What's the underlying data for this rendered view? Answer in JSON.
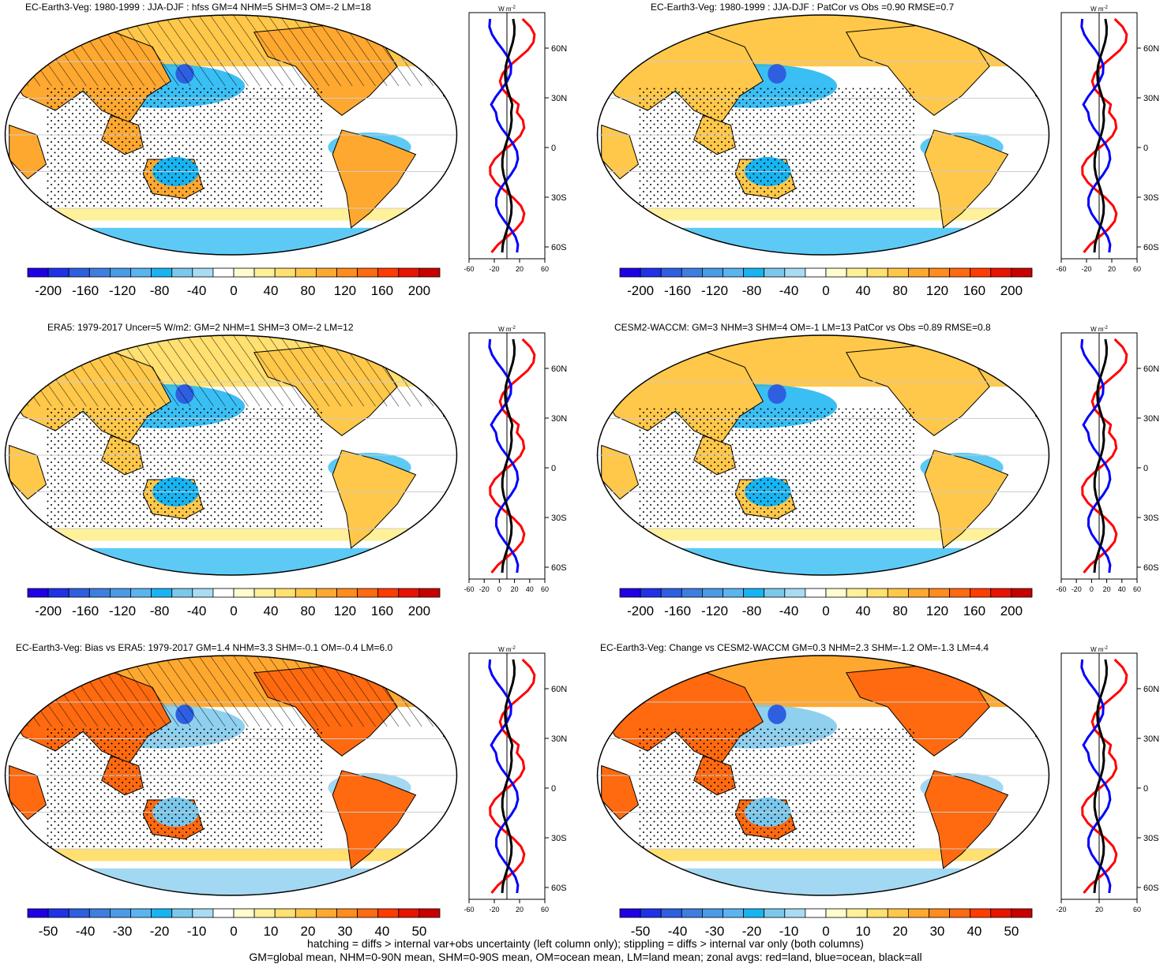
{
  "colorbar_colors": [
    "#1e00e6",
    "#1f32e8",
    "#2d5fe0",
    "#3d7fe0",
    "#4a9ae6",
    "#5ab4f0",
    "#18b4f2",
    "#7cc8ec",
    "#a8dcf4",
    "#ffffff",
    "#fffdd0",
    "#fff09a",
    "#ffe070",
    "#ffc84a",
    "#ffa830",
    "#ff8c1e",
    "#ff6a10",
    "#ff3c00",
    "#e81400",
    "#c80000"
  ],
  "panels": [
    {
      "id": "p1",
      "title": "EC-Earth3-Veg: 1980-1999 : JJA-DJF : hfss GM=4 NHM=5 SHM=3 OM=-2 LM=18",
      "cbar_labels": [
        "-200",
        "-160",
        "-120",
        "-80",
        "-40",
        "0",
        "40",
        "80",
        "120",
        "160",
        "200"
      ],
      "zonal_xlabels": [
        "-60",
        "-20",
        "20",
        "60"
      ],
      "zonal_ylabels": [
        "60N",
        "30N",
        "0",
        "30S",
        "60S"
      ]
    },
    {
      "id": "p2",
      "title": "EC-Earth3-Veg: 1980-1999 : JJA-DJF : PatCor vs Obs =0.90 RMSE=0.7",
      "cbar_labels": [
        "-200",
        "-160",
        "-120",
        "-80",
        "-40",
        "0",
        "40",
        "80",
        "120",
        "160",
        "200"
      ],
      "zonal_xlabels": [
        "-60",
        "-20",
        "20",
        "60"
      ],
      "zonal_ylabels": [
        "60N",
        "30N",
        "0",
        "30S",
        "60S"
      ]
    },
    {
      "id": "p3",
      "title": "ERA5: 1979-2017 Uncer=5 W/m2: GM=2 NHM=1 SHM=3 OM=-2 LM=12",
      "cbar_labels": [
        "-200",
        "-160",
        "-120",
        "-80",
        "-40",
        "0",
        "40",
        "80",
        "120",
        "160",
        "200"
      ],
      "zonal_xlabels": [
        "-60",
        "-20",
        "0",
        "20",
        "40",
        "60"
      ],
      "zonal_ylabels": [
        "60N",
        "30N",
        "0",
        "30S",
        "60S"
      ]
    },
    {
      "id": "p4",
      "title": "CESM2-WACCM: GM=3 NHM=3 SHM=4 OM=-1 LM=13 PatCor vs Obs =0.89 RMSE=0.8",
      "cbar_labels": [
        "-200",
        "-160",
        "-120",
        "-80",
        "-40",
        "0",
        "40",
        "80",
        "120",
        "160",
        "200"
      ],
      "zonal_xlabels": [
        "-60",
        "-20",
        "0",
        "20",
        "40",
        "60"
      ],
      "zonal_ylabels": [
        "60N",
        "30N",
        "0",
        "30S",
        "60S"
      ]
    },
    {
      "id": "p5",
      "title": "EC-Earth3-Veg: Bias vs ERA5: 1979-2017 GM=1.4 NHM=3.3 SHM=-0.1 OM=-0.4 LM=6.0",
      "cbar_labels": [
        "-50",
        "-40",
        "-30",
        "-20",
        "-10",
        "0",
        "10",
        "20",
        "30",
        "40",
        "50"
      ],
      "zonal_xlabels": [
        "-60",
        "-20",
        "20",
        "60"
      ],
      "zonal_ylabels": [
        "60N",
        "30N",
        "0",
        "30S",
        "60S"
      ]
    },
    {
      "id": "p6",
      "title": "EC-Earth3-Veg: Change vs CESM2-WACCM GM=0.3 NHM=2.3 SHM=-1.2 OM=-1.3 LM=4.4",
      "cbar_labels": [
        "-50",
        "-40",
        "-30",
        "-20",
        "-10",
        "0",
        "10",
        "20",
        "30",
        "40",
        "50"
      ],
      "zonal_xlabels": [
        "-20",
        "20",
        "60"
      ],
      "zonal_ylabels": [
        "60N",
        "30N",
        "0",
        "30S",
        "60S"
      ]
    }
  ],
  "units_label": "W m",
  "units_exp": "-2",
  "footer": {
    "line1": "hatching = diffs > internal var+obs uncertainty (left column only); stippling = diffs > internal var only (both columns)",
    "line2": "GM=global mean, NHM=0-90N mean, SHM=0-90S mean, OM=ocean mean, LM=land mean; zonal avgs: red=land, blue=ocean, black=all"
  },
  "chart_data": [
    {
      "type": "heatmap",
      "title": "EC-Earth3-Veg: 1980-1999 : JJA-DJF : hfss GM=4 NHM=5 SHM=3 OM=-2 LM=18",
      "colorbar": [
        -200,
        -160,
        -120,
        -80,
        -40,
        0,
        40,
        80,
        120,
        160,
        200
      ]
    },
    {
      "type": "heatmap",
      "title": "EC-Earth3-Veg: 1980-1999 : JJA-DJF : PatCor vs Obs =0.90 RMSE=0.7",
      "colorbar": [
        -200,
        -160,
        -120,
        -80,
        -40,
        0,
        40,
        80,
        120,
        160,
        200
      ]
    },
    {
      "type": "heatmap",
      "title": "ERA5: 1979-2017 Uncer=5 W/m2: GM=2 NHM=1 SHM=3 OM=-2 LM=12",
      "colorbar": [
        -200,
        -160,
        -120,
        -80,
        -40,
        0,
        40,
        80,
        120,
        160,
        200
      ]
    },
    {
      "type": "heatmap",
      "title": "CESM2-WACCM: GM=3 NHM=3 SHM=4 OM=-1 LM=13 PatCor vs Obs =0.89 RMSE=0.8",
      "colorbar": [
        -200,
        -160,
        -120,
        -80,
        -40,
        0,
        40,
        80,
        120,
        160,
        200
      ]
    },
    {
      "type": "heatmap",
      "title": "EC-Earth3-Veg: Bias vs ERA5: 1979-2017 GM=1.4 NHM=3.3 SHM=-0.1 OM=-0.4 LM=6.0",
      "colorbar": [
        -50,
        -40,
        -30,
        -20,
        -10,
        0,
        10,
        20,
        30,
        40,
        50
      ]
    },
    {
      "type": "heatmap",
      "title": "EC-Earth3-Veg: Change vs CESM2-WACCM GM=0.3 NHM=2.3 SHM=-1.2 OM=-1.3 LM=4.4",
      "colorbar": [
        -50,
        -40,
        -30,
        -20,
        -10,
        0,
        10,
        20,
        30,
        40,
        50
      ]
    }
  ]
}
